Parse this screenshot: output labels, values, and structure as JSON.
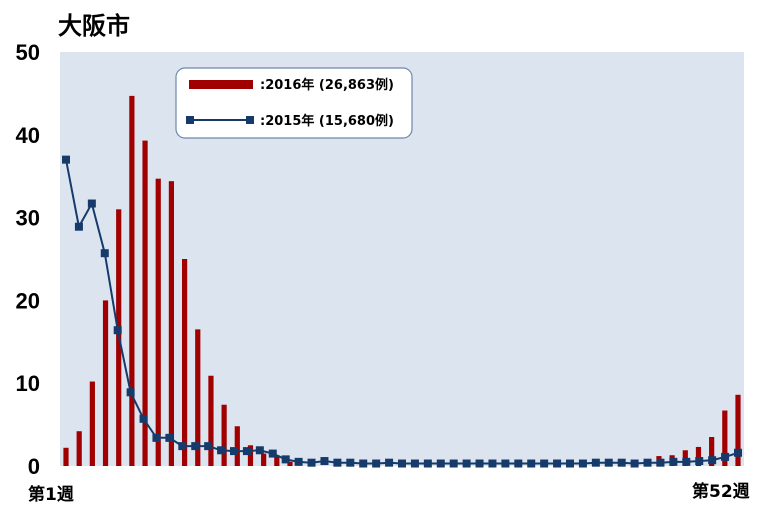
{
  "chart_data": {
    "type": "bar",
    "title": "大阪市",
    "xlabel": "",
    "ylabel": "",
    "x_tick_labels": {
      "first": "第1週",
      "last": "第52週"
    },
    "weeks": 52,
    "ylim": [
      0,
      50
    ],
    "yticks": [
      0,
      10,
      20,
      30,
      40,
      50
    ],
    "grid": false,
    "legend_position": "top-left",
    "plot_background": "#dce4f0",
    "series": [
      {
        "name": ":2016年 (26,863例)",
        "kind": "bar",
        "color": "#a00000",
        "values": [
          2.2,
          4.2,
          10.2,
          20.0,
          31.0,
          44.7,
          39.3,
          34.7,
          34.4,
          25.0,
          16.5,
          10.9,
          7.4,
          4.8,
          2.5,
          1.5,
          1.3,
          0.5,
          0,
          0,
          0,
          0,
          0,
          0,
          0,
          0,
          0,
          0,
          0,
          0,
          0,
          0,
          0,
          0,
          0,
          0,
          0,
          0,
          0,
          0,
          0,
          0,
          0,
          0,
          0,
          1.2,
          1.3,
          1.9,
          2.3,
          3.5,
          6.7,
          8.6
        ]
      },
      {
        "name": ":2015年 (15,680例)",
        "kind": "line",
        "color": "#163b6b",
        "values": [
          37.0,
          28.9,
          31.7,
          25.7,
          16.4,
          8.9,
          5.7,
          3.4,
          3.4,
          2.4,
          2.4,
          2.4,
          1.9,
          1.8,
          1.8,
          1.9,
          1.5,
          0.8,
          0.5,
          0.4,
          0.6,
          0.4,
          0.4,
          0.3,
          0.3,
          0.4,
          0.3,
          0.3,
          0.3,
          0.3,
          0.3,
          0.3,
          0.3,
          0.3,
          0.3,
          0.3,
          0.3,
          0.3,
          0.3,
          0.3,
          0.3,
          0.4,
          0.4,
          0.4,
          0.3,
          0.4,
          0.4,
          0.5,
          0.5,
          0.6,
          0.7,
          1.1,
          1.6
        ]
      }
    ]
  }
}
